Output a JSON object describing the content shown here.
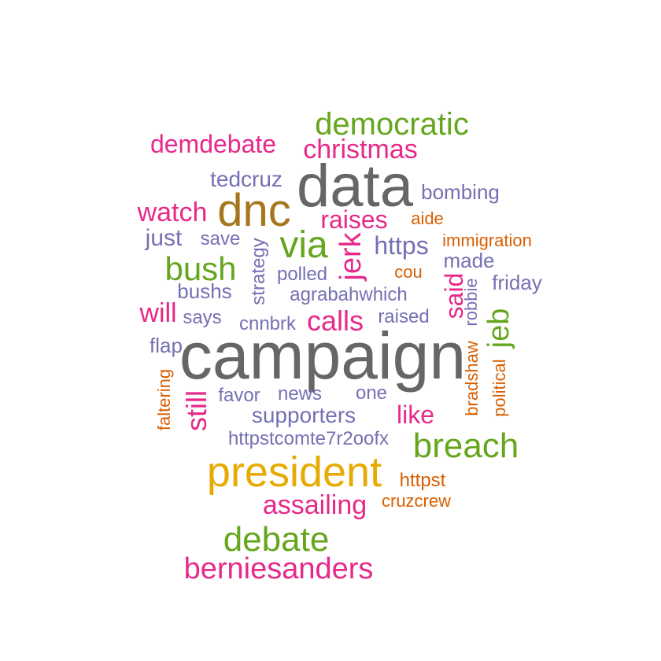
{
  "palette": {
    "gray": "#666666",
    "green": "#66a61e",
    "magenta": "#e7298a",
    "purple": "#7570b3",
    "orange": "#d95f02",
    "gold": "#e6ab02",
    "brown": "#a6761d"
  },
  "words": [
    {
      "id": "campaign",
      "text": "campaign",
      "color": "#666666",
      "orientation": "horizontal"
    },
    {
      "id": "data",
      "text": "data",
      "color": "#666666",
      "orientation": "horizontal"
    },
    {
      "id": "president",
      "text": "president",
      "color": "#e6ab02",
      "orientation": "horizontal"
    },
    {
      "id": "dnc",
      "text": "dnc",
      "color": "#a6761d",
      "orientation": "horizontal"
    },
    {
      "id": "democratic",
      "text": "democratic",
      "color": "#66a61e",
      "orientation": "horizontal"
    },
    {
      "id": "breach",
      "text": "breach",
      "color": "#66a61e",
      "orientation": "horizontal"
    },
    {
      "id": "debate",
      "text": "debate",
      "color": "#66a61e",
      "orientation": "horizontal"
    },
    {
      "id": "berniesanders",
      "text": "berniesanders",
      "color": "#e7298a",
      "orientation": "horizontal"
    },
    {
      "id": "bush",
      "text": "bush",
      "color": "#66a61e",
      "orientation": "horizontal"
    },
    {
      "id": "via",
      "text": "via",
      "color": "#66a61e",
      "orientation": "horizontal"
    },
    {
      "id": "christmas",
      "text": "christmas",
      "color": "#e7298a",
      "orientation": "horizontal"
    },
    {
      "id": "demdebate",
      "text": "demdebate",
      "color": "#e7298a",
      "orientation": "horizontal"
    },
    {
      "id": "watch",
      "text": "watch",
      "color": "#e7298a",
      "orientation": "horizontal"
    },
    {
      "id": "raises",
      "text": "raises",
      "color": "#e7298a",
      "orientation": "horizontal"
    },
    {
      "id": "jerk",
      "text": "jerk",
      "color": "#e7298a",
      "orientation": "vertical"
    },
    {
      "id": "said",
      "text": "said",
      "color": "#e7298a",
      "orientation": "vertical"
    },
    {
      "id": "jeb",
      "text": "jeb",
      "color": "#66a61e",
      "orientation": "vertical"
    },
    {
      "id": "calls",
      "text": "calls",
      "color": "#e7298a",
      "orientation": "horizontal"
    },
    {
      "id": "still",
      "text": "still",
      "color": "#e7298a",
      "orientation": "vertical"
    },
    {
      "id": "assailing",
      "text": "assailing",
      "color": "#e7298a",
      "orientation": "horizontal"
    },
    {
      "id": "like",
      "text": "like",
      "color": "#e7298a",
      "orientation": "horizontal"
    },
    {
      "id": "will",
      "text": "will",
      "color": "#e7298a",
      "orientation": "horizontal"
    },
    {
      "id": "supporters",
      "text": "supporters",
      "color": "#7570b3",
      "orientation": "horizontal"
    },
    {
      "id": "https",
      "text": "https",
      "color": "#7570b3",
      "orientation": "horizontal"
    },
    {
      "id": "tedcruz",
      "text": "tedcruz",
      "color": "#7570b3",
      "orientation": "horizontal"
    },
    {
      "id": "bombing",
      "text": "bombing",
      "color": "#7570b3",
      "orientation": "horizontal"
    },
    {
      "id": "just",
      "text": "just",
      "color": "#7570b3",
      "orientation": "horizontal"
    },
    {
      "id": "save",
      "text": "save",
      "color": "#7570b3",
      "orientation": "horizontal"
    },
    {
      "id": "strategy",
      "text": "strategy",
      "color": "#7570b3",
      "orientation": "vertical"
    },
    {
      "id": "polled",
      "text": "polled",
      "color": "#7570b3",
      "orientation": "horizontal"
    },
    {
      "id": "bushs",
      "text": "bushs",
      "color": "#7570b3",
      "orientation": "horizontal"
    },
    {
      "id": "says",
      "text": "says",
      "color": "#7570b3",
      "orientation": "horizontal"
    },
    {
      "id": "cnnbrk",
      "text": "cnnbrk",
      "color": "#7570b3",
      "orientation": "horizontal"
    },
    {
      "id": "agrabahwhich",
      "text": "agrabahwhich",
      "color": "#7570b3",
      "orientation": "horizontal"
    },
    {
      "id": "raised",
      "text": "raised",
      "color": "#7570b3",
      "orientation": "horizontal"
    },
    {
      "id": "made",
      "text": "made",
      "color": "#7570b3",
      "orientation": "horizontal"
    },
    {
      "id": "friday",
      "text": "friday",
      "color": "#7570b3",
      "orientation": "horizontal"
    },
    {
      "id": "flap",
      "text": "flap",
      "color": "#7570b3",
      "orientation": "horizontal"
    },
    {
      "id": "favor",
      "text": "favor",
      "color": "#7570b3",
      "orientation": "horizontal"
    },
    {
      "id": "news",
      "text": "news",
      "color": "#7570b3",
      "orientation": "horizontal"
    },
    {
      "id": "one",
      "text": "one",
      "color": "#7570b3",
      "orientation": "horizontal"
    },
    {
      "id": "httpstcomte7r2oofx",
      "text": "httpstcomte7r2oofx",
      "color": "#7570b3",
      "orientation": "horizontal"
    },
    {
      "id": "robbie",
      "text": "robbie",
      "color": "#7570b3",
      "orientation": "vertical"
    },
    {
      "id": "aide",
      "text": "aide",
      "color": "#d95f02",
      "orientation": "horizontal"
    },
    {
      "id": "immigration",
      "text": "immigration",
      "color": "#d95f02",
      "orientation": "horizontal"
    },
    {
      "id": "cou",
      "text": "cou",
      "color": "#d95f02",
      "orientation": "horizontal"
    },
    {
      "id": "bradshaw",
      "text": "bradshaw",
      "color": "#d95f02",
      "orientation": "vertical"
    },
    {
      "id": "political",
      "text": "political",
      "color": "#d95f02",
      "orientation": "vertical"
    },
    {
      "id": "faltering",
      "text": "faltering",
      "color": "#d95f02",
      "orientation": "vertical"
    },
    {
      "id": "httpst",
      "text": "httpst",
      "color": "#d95f02",
      "orientation": "horizontal"
    },
    {
      "id": "cruzcrew",
      "text": "cruzcrew",
      "color": "#d95f02",
      "orientation": "horizontal"
    }
  ]
}
